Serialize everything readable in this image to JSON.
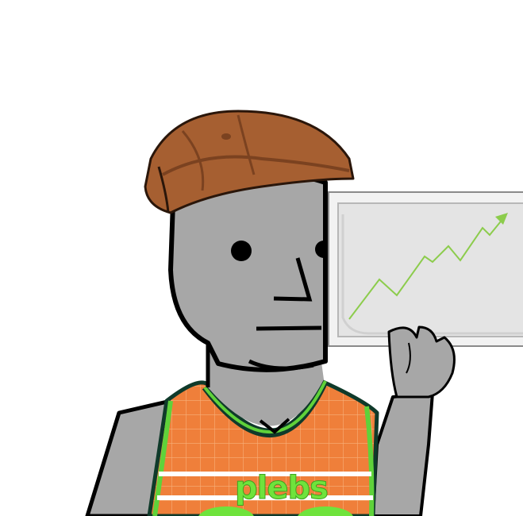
{
  "illustration": {
    "jersey_text": "plebs",
    "icons": [
      "flat-cap-icon",
      "chart-board-icon",
      "upward-arrow-icon"
    ]
  },
  "colors": {
    "skin": "#a7a7a7",
    "outline": "#000000",
    "cap": "#a65f31",
    "cap_dark": "#7b4220",
    "jersey": "#ef7f3a",
    "jersey_trim": "#5fd23a",
    "jersey_dark_trim": "#0f3a2a",
    "jersey_text": "#6fe33c",
    "board_fill": "#e4e4e4",
    "board_frame": "#f2f2f2",
    "chart_line": "#8ccc4c"
  }
}
